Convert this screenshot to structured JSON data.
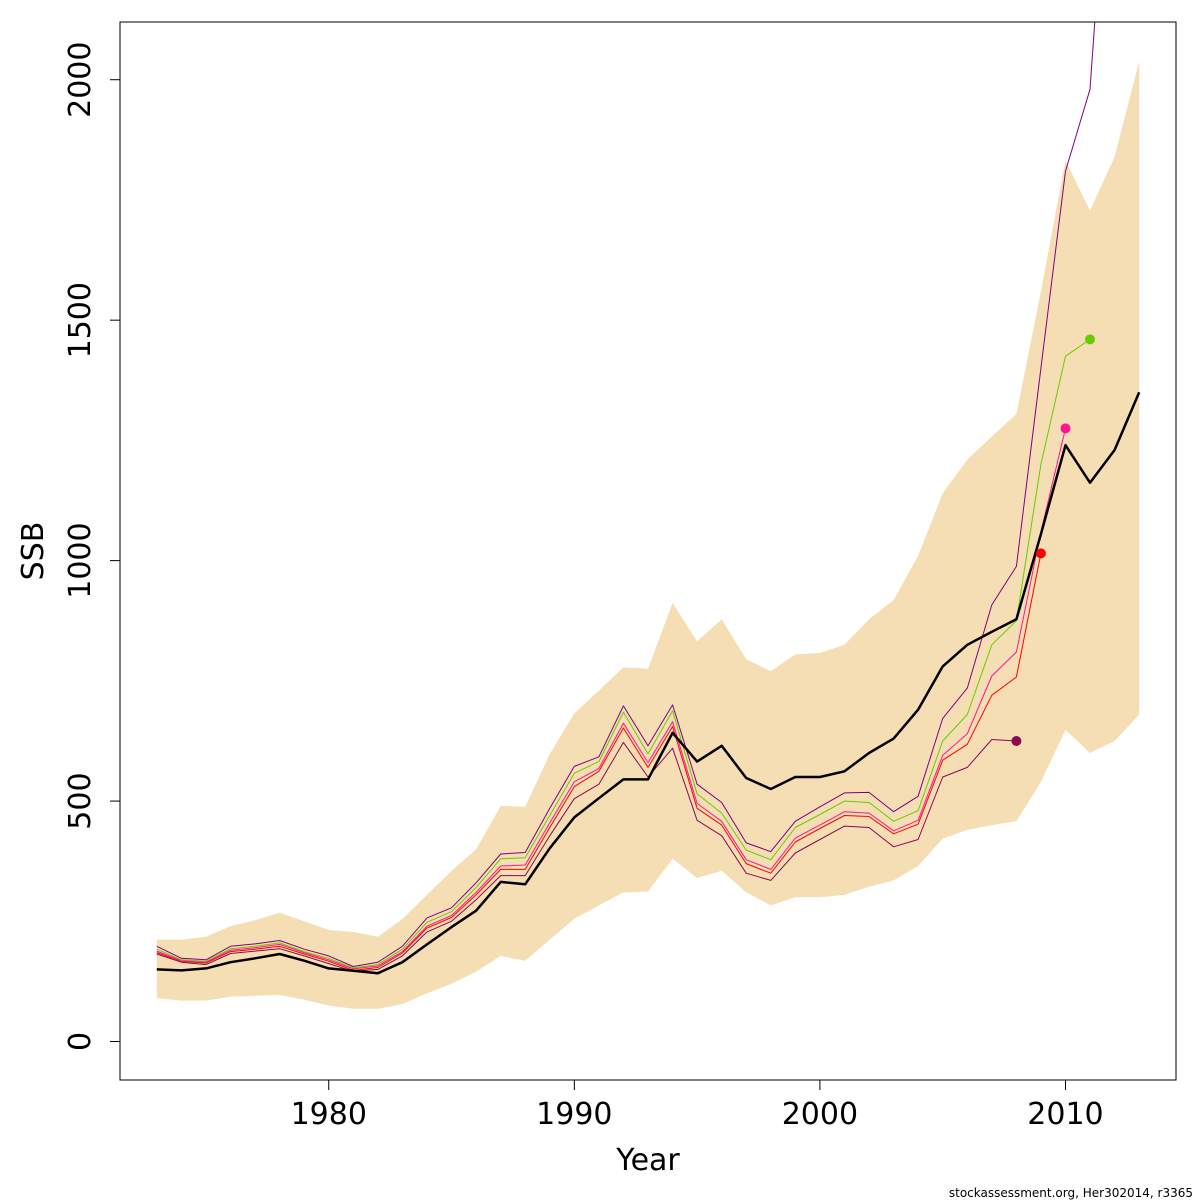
{
  "chart_data": {
    "type": "line",
    "xlabel": "Year",
    "ylabel": "SSB",
    "xlim": [
      1971.5,
      2014.5
    ],
    "ylim": [
      -80,
      2120
    ],
    "x_ticks": [
      1980,
      1990,
      2000,
      2010
    ],
    "y_ticks": [
      0,
      500,
      1000,
      1500,
      2000
    ],
    "grid": false,
    "legend": "none",
    "band_color": "#F5DEB3",
    "band": {
      "x": [
        1973,
        1974,
        1975,
        1976,
        1977,
        1978,
        1979,
        1980,
        1981,
        1982,
        1983,
        1984,
        1985,
        1986,
        1987,
        1988,
        1989,
        1990,
        1991,
        1992,
        1993,
        1994,
        1995,
        1996,
        1997,
        1998,
        1999,
        2000,
        2001,
        2002,
        2003,
        2004,
        2005,
        2006,
        2007,
        2008,
        2009,
        2010,
        2011,
        2012,
        2013
      ],
      "lower": [
        90,
        85,
        85,
        93,
        95,
        97,
        87,
        75,
        68,
        68,
        78,
        100,
        120,
        145,
        178,
        168,
        212,
        255,
        283,
        310,
        312,
        380,
        340,
        355,
        310,
        283,
        300,
        300,
        305,
        322,
        335,
        365,
        422,
        440,
        450,
        458,
        540,
        648,
        600,
        625,
        680
      ],
      "upper": [
        212,
        212,
        218,
        240,
        252,
        268,
        250,
        232,
        228,
        218,
        255,
        305,
        355,
        400,
        490,
        488,
        598,
        682,
        730,
        778,
        775,
        912,
        832,
        878,
        795,
        770,
        805,
        808,
        825,
        878,
        918,
        1010,
        1140,
        1210,
        1258,
        1305,
        1560,
        1832,
        1728,
        1840,
        2038
      ]
    },
    "series": [
      {
        "color": "#000000",
        "width": 2.5,
        "x": [
          1973,
          1974,
          1975,
          1976,
          1977,
          1978,
          1979,
          1980,
          1981,
          1982,
          1983,
          1984,
          1985,
          1986,
          1987,
          1988,
          1989,
          1990,
          1991,
          1992,
          1993,
          1994,
          1995,
          1996,
          1997,
          1998,
          1999,
          2000,
          2001,
          2002,
          2003,
          2004,
          2005,
          2006,
          2007,
          2008,
          2009,
          2010,
          2011,
          2012,
          2013
        ],
        "values": [
          150,
          148,
          152,
          165,
          173,
          182,
          168,
          152,
          147,
          142,
          165,
          202,
          238,
          272,
          332,
          327,
          402,
          466,
          506,
          545,
          545,
          642,
          582,
          615,
          548,
          525,
          550,
          550,
          562,
          600,
          630,
          690,
          780,
          825,
          852,
          878,
          1055,
          1240,
          1162,
          1230,
          1350
        ]
      },
      {
        "color": "#800080",
        "width": 1,
        "end_point": false,
        "x": [
          1973,
          1974,
          1975,
          1976,
          1977,
          1978,
          1979,
          1980,
          1981,
          1982,
          1983,
          1984,
          1985,
          1986,
          1987,
          1988,
          1989,
          1990,
          1991,
          1992,
          1993,
          1994,
          1995,
          1996,
          1997,
          1998,
          1999,
          2000,
          2001,
          2002,
          2003,
          2004,
          2005,
          2006,
          2007,
          2008,
          2009,
          2010,
          2011,
          2012
        ],
        "values": [
          198,
          173,
          170,
          198,
          203,
          210,
          192,
          178,
          156,
          165,
          198,
          257,
          278,
          330,
          390,
          393,
          485,
          572,
          592,
          698,
          615,
          700,
          535,
          497,
          413,
          395,
          458,
          488,
          517,
          518,
          478,
          510,
          672,
          735,
          908,
          988,
          1400,
          1810,
          1980,
          2700
        ]
      },
      {
        "color": "#66CC00",
        "width": 1,
        "end_point": true,
        "x": [
          1973,
          1974,
          1975,
          1976,
          1977,
          1978,
          1979,
          1980,
          1981,
          1982,
          1983,
          1984,
          1985,
          1986,
          1987,
          1988,
          1989,
          1990,
          1991,
          1992,
          1993,
          1994,
          1995,
          1996,
          1997,
          1998,
          1999,
          2000,
          2001,
          2002,
          2003,
          2004,
          2005,
          2006,
          2007,
          2008,
          2009,
          2010,
          2011
        ],
        "values": [
          192,
          170,
          167,
          193,
          198,
          205,
          187,
          173,
          153,
          160,
          192,
          248,
          270,
          320,
          380,
          382,
          470,
          558,
          582,
          685,
          598,
          688,
          515,
          475,
          398,
          378,
          445,
          472,
          500,
          497,
          458,
          480,
          625,
          680,
          825,
          875,
          1200,
          1425,
          1460
        ]
      },
      {
        "color": "#FF1493",
        "width": 1,
        "end_point": true,
        "x": [
          1973,
          1974,
          1975,
          1976,
          1977,
          1978,
          1979,
          1980,
          1981,
          1982,
          1983,
          1984,
          1985,
          1986,
          1987,
          1988,
          1989,
          1990,
          1991,
          1992,
          1993,
          1994,
          1995,
          1996,
          1997,
          1998,
          1999,
          2000,
          2001,
          2002,
          2003,
          2004,
          2005,
          2006,
          2007,
          2008,
          2009,
          2010
        ],
        "values": [
          188,
          168,
          165,
          190,
          195,
          202,
          185,
          170,
          151,
          157,
          187,
          240,
          262,
          310,
          365,
          367,
          455,
          540,
          568,
          662,
          580,
          665,
          495,
          458,
          378,
          358,
          423,
          450,
          478,
          475,
          438,
          460,
          595,
          640,
          760,
          810,
          1060,
          1275
        ]
      },
      {
        "color": "#FF0000",
        "width": 1,
        "end_point": true,
        "x": [
          1973,
          1974,
          1975,
          1976,
          1977,
          1978,
          1979,
          1980,
          1981,
          1982,
          1983,
          1984,
          1985,
          1986,
          1987,
          1988,
          1989,
          1990,
          1991,
          1992,
          1993,
          1994,
          1995,
          1996,
          1997,
          1998,
          1999,
          2000,
          2001,
          2002,
          2003,
          2004,
          2005,
          2006,
          2007,
          2008,
          2009
        ],
        "values": [
          185,
          167,
          163,
          187,
          192,
          198,
          182,
          167,
          148,
          154,
          184,
          236,
          258,
          305,
          358,
          358,
          445,
          530,
          562,
          652,
          570,
          655,
          485,
          450,
          370,
          350,
          415,
          443,
          470,
          468,
          432,
          452,
          585,
          618,
          720,
          758,
          1015
        ]
      },
      {
        "color": "#8B0A50",
        "width": 1,
        "end_point": true,
        "x": [
          1973,
          1974,
          1975,
          1976,
          1977,
          1978,
          1979,
          1980,
          1981,
          1982,
          1983,
          1984,
          1985,
          1986,
          1987,
          1988,
          1989,
          1990,
          1991,
          1992,
          1993,
          1994,
          1995,
          1996,
          1997,
          1998,
          1999,
          2000,
          2001,
          2002,
          2003,
          2004,
          2005,
          2006,
          2007,
          2008
        ],
        "values": [
          182,
          165,
          160,
          183,
          188,
          193,
          178,
          162,
          146,
          150,
          178,
          228,
          250,
          295,
          345,
          345,
          428,
          505,
          535,
          622,
          550,
          610,
          460,
          428,
          350,
          335,
          392,
          420,
          448,
          445,
          405,
          420,
          550,
          570,
          628,
          625
        ]
      }
    ]
  },
  "footer_text": "stockassessment.org, Her302014, r3365"
}
